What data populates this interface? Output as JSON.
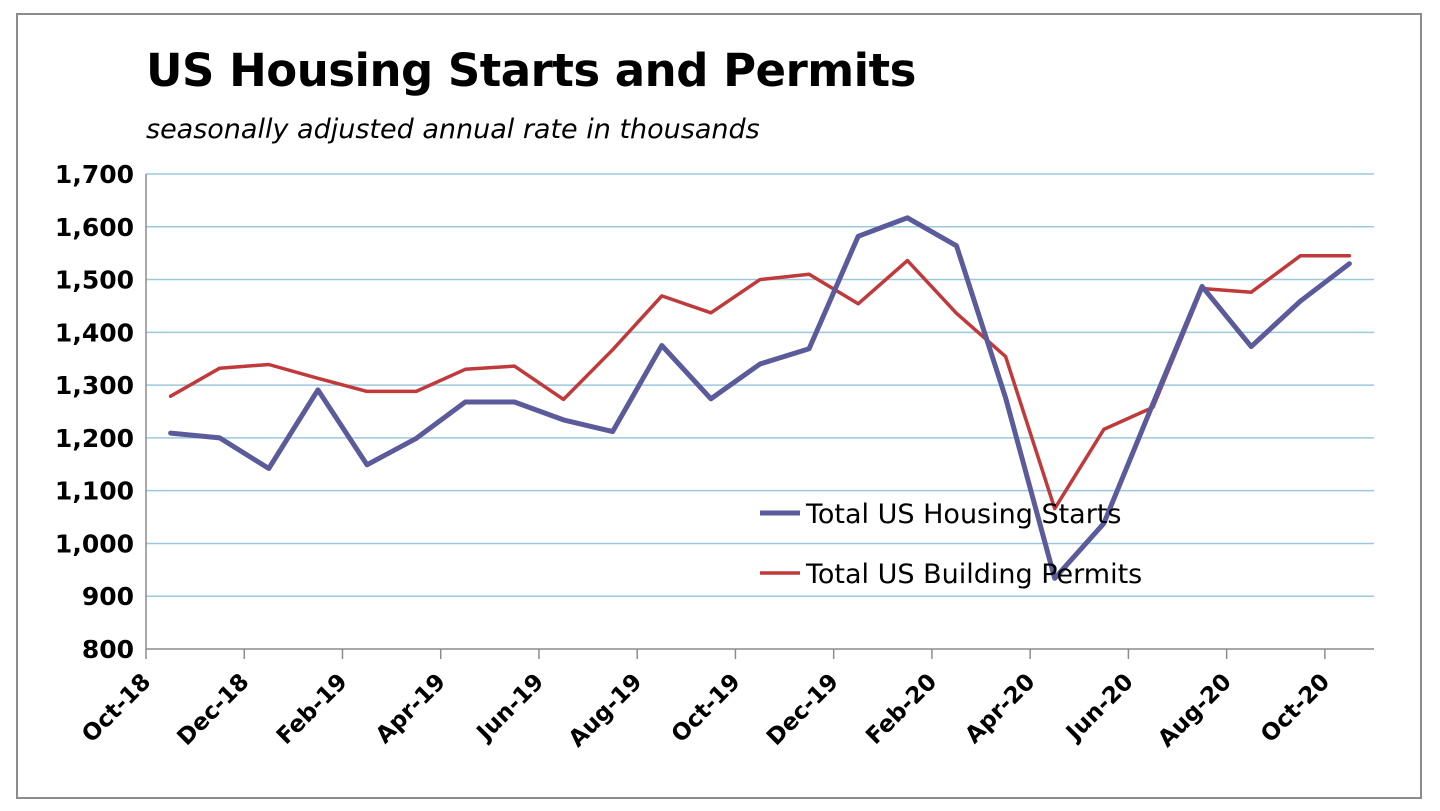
{
  "chart_data": {
    "type": "line",
    "title": "US Housing Starts and Permits",
    "subtitle": "seasonally adjusted annual rate in thousands",
    "ylim": [
      800,
      1700
    ],
    "yticks": [
      800,
      900,
      1000,
      1100,
      1200,
      1300,
      1400,
      1500,
      1600,
      1700
    ],
    "ytick_labels": [
      "800",
      "900",
      "1,000",
      "1,100",
      "1,200",
      "1,300",
      "1,400",
      "1,500",
      "1,600",
      "1,700"
    ],
    "x": [
      "Oct-18",
      "Nov-18",
      "Dec-18",
      "Jan-19",
      "Feb-19",
      "Mar-19",
      "Apr-19",
      "May-19",
      "Jun-19",
      "Jul-19",
      "Aug-19",
      "Sep-19",
      "Oct-19",
      "Nov-19",
      "Dec-19",
      "Jan-20",
      "Feb-20",
      "Mar-20",
      "Apr-20",
      "May-20",
      "Jun-20",
      "Jul-20",
      "Aug-20",
      "Sep-20",
      "Oct-20"
    ],
    "xtick_labels": [
      "Oct-18",
      "Dec-18",
      "Feb-19",
      "Apr-19",
      "Jun-19",
      "Aug-19",
      "Oct-19",
      "Dec-19",
      "Feb-20",
      "Apr-20",
      "Jun-20",
      "Aug-20",
      "Oct-20"
    ],
    "grid": true,
    "legend_position": "bottom-right",
    "series": [
      {
        "name": "Total US Housing Starts",
        "color": "#5b5b9c",
        "values": [
          1209,
          1200,
          1142,
          1291,
          1149,
          1199,
          1268,
          1268,
          1234,
          1212,
          1375,
          1274,
          1340,
          1369,
          1582,
          1617,
          1564,
          1276,
          934,
          1038,
          1265,
          1487,
          1373,
          1459,
          1530
        ]
      },
      {
        "name": "Total US Building Permits",
        "color": "#c0393b",
        "values": [
          1279,
          1332,
          1339,
          1313,
          1288,
          1288,
          1330,
          1336,
          1273,
          1367,
          1469,
          1437,
          1500,
          1510,
          1454,
          1536,
          1436,
          1354,
          1066,
          1216,
          1258,
          1483,
          1476,
          1545,
          1545
        ]
      }
    ]
  }
}
